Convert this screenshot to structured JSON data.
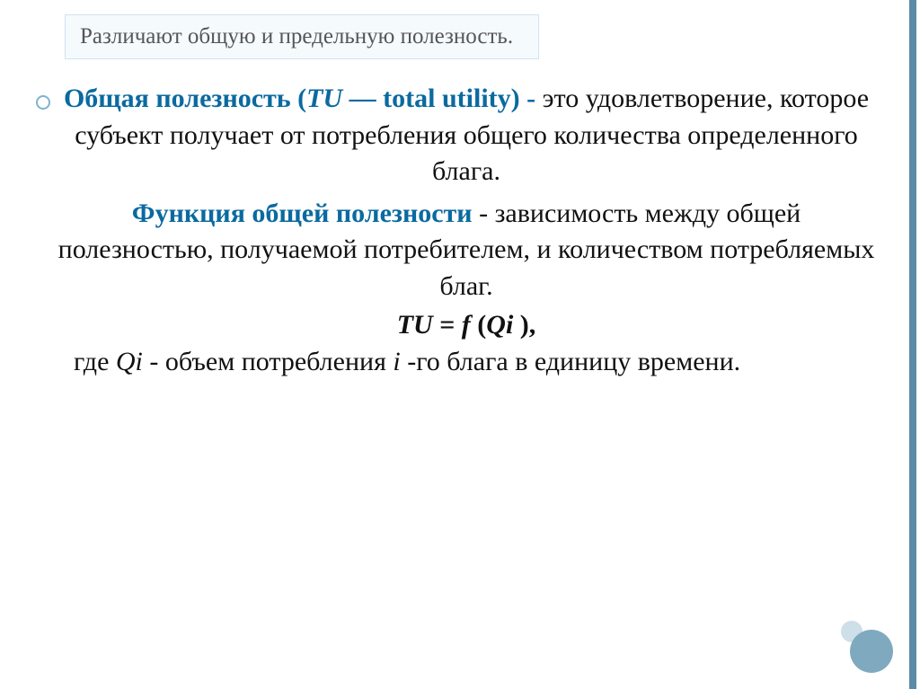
{
  "colors": {
    "accent_bar": "#5a8ca8",
    "title_border": "#cfe3ee",
    "title_bg": "#f5fafd",
    "title_text": "#555555",
    "highlight_text": "#0a6aa0",
    "body_text": "#111111",
    "bullet_ring": "#7fb3cc",
    "deco_big": "#7fa9bf",
    "deco_small": "#cddfe9",
    "background": "#ffffff"
  },
  "typography": {
    "title_fontsize_pt": 19,
    "body_fontsize_pt": 22,
    "font_family": "Georgia/serif",
    "line_height": 1.35
  },
  "title": "Различают общую и предельную полезность.",
  "p1": {
    "lead": "Общая полезность  (",
    "tu": "TU",
    "dash": " — total utility) -",
    "rest": " это удовлетворение, которое субъект получает от потребления общего количества определенного блага."
  },
  "p2": {
    "lead": "Функция общей полезности",
    "rest": " - зависимость между общей полезностью, получаемой потребителем, и количеством потребляемых благ."
  },
  "formula": {
    "tu": "TU",
    "eq": "  =  ",
    "f": "f",
    "open": " (",
    "qi": "Qi",
    "close": " ),"
  },
  "p3": {
    "pre": "где  ",
    "qi": "Qi",
    "mid": "  - объем потребления  ",
    "i": "i",
    "post": " -го блага в единицу времени."
  }
}
